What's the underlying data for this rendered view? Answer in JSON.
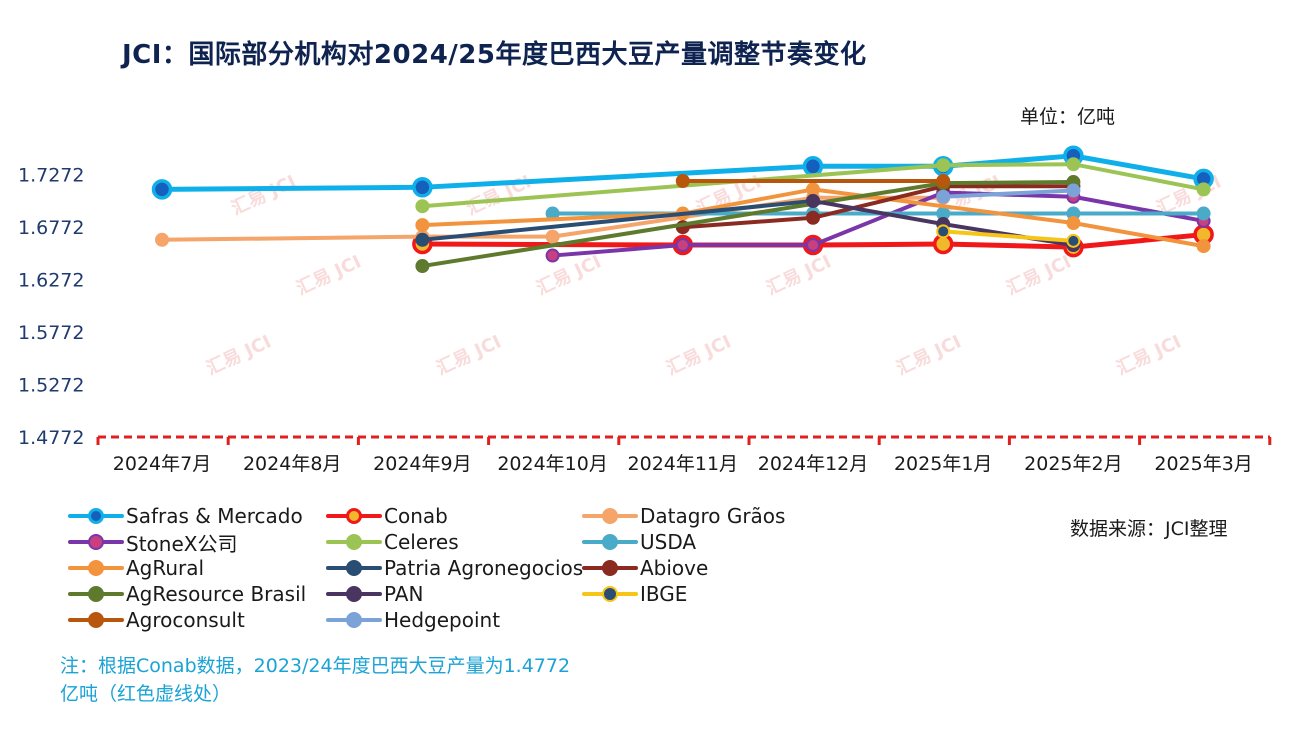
{
  "title": "JCI：国际部分机构对2024/25年度巴西大豆产量调整节奏变化",
  "unit_label": "单位：亿吨",
  "source_label": "数据来源：JCI整理",
  "note": "注：根据Conab数据，2023/24年度巴西大豆产量为1.4772亿吨（红色虚线处）",
  "watermark_text": "汇易 JCI",
  "chart_data": {
    "type": "line",
    "categories": [
      "2024年7月",
      "2024年8月",
      "2024年9月",
      "2024年10月",
      "2024年11月",
      "2024年12月",
      "2025年1月",
      "2025年2月",
      "2025年3月"
    ],
    "y_ticks": [
      "1.7272",
      "1.6772",
      "1.6272",
      "1.5772",
      "1.5272",
      "1.4772"
    ],
    "ylim": [
      1.4772,
      1.7772
    ],
    "reference_line": {
      "value": 1.4772,
      "color": "#e02020",
      "style": "dashed"
    },
    "grid": false,
    "legend_position": "bottom",
    "series": [
      {
        "name": "Safras & Mercado",
        "color": "#0fb0ea",
        "marker_fill": "#1560bd",
        "marker_edge": "#0fb0ea",
        "big": true,
        "values": [
          1.713,
          null,
          1.715,
          null,
          null,
          1.735,
          1.735,
          1.745,
          1.723
        ]
      },
      {
        "name": "Conab",
        "color": "#f01818",
        "marker_fill": "#f0b82a",
        "marker_edge": "#f01818",
        "big": true,
        "values": [
          null,
          null,
          1.661,
          null,
          1.66,
          1.66,
          1.661,
          1.658,
          1.67
        ]
      },
      {
        "name": "Datagro Grãos",
        "color": "#f5a46a",
        "marker_fill": "#f5a46a",
        "marker_edge": "#f5a46a",
        "big": false,
        "values": [
          1.665,
          null,
          1.668,
          1.668,
          null,
          1.705,
          1.705,
          null,
          null
        ]
      },
      {
        "name": "StoneX公司",
        "color": "#7a35a8",
        "marker_fill": "#c94080",
        "marker_edge": "#7a35a8",
        "big": false,
        "values": [
          null,
          null,
          null,
          1.65,
          1.66,
          1.66,
          1.71,
          1.706,
          1.683
        ]
      },
      {
        "name": "Celeres",
        "color": "#9cc454",
        "marker_fill": "#9cc454",
        "marker_edge": "#9cc454",
        "big": false,
        "values": [
          null,
          null,
          1.697,
          null,
          null,
          null,
          1.736,
          1.737,
          1.713
        ]
      },
      {
        "name": "USDA",
        "color": "#4aabc8",
        "marker_fill": "#4aabc8",
        "marker_edge": "#4aabc8",
        "big": false,
        "values": [
          null,
          null,
          null,
          1.69,
          null,
          1.69,
          1.69,
          1.69,
          1.69
        ]
      },
      {
        "name": "AgRural",
        "color": "#f2943e",
        "marker_fill": "#f2943e",
        "marker_edge": "#f2943e",
        "big": false,
        "values": [
          null,
          null,
          1.679,
          null,
          1.69,
          1.713,
          null,
          1.681,
          1.659
        ]
      },
      {
        "name": "Patria Agronegocios",
        "color": "#2a4d73",
        "marker_fill": "#2a4d73",
        "marker_edge": "#2a4d73",
        "big": false,
        "values": [
          null,
          null,
          1.665,
          null,
          null,
          1.702,
          null,
          null,
          null
        ]
      },
      {
        "name": "Abiove",
        "color": "#8a2a20",
        "marker_fill": "#8a2a20",
        "marker_edge": "#8a2a20",
        "big": false,
        "values": [
          null,
          null,
          null,
          null,
          1.677,
          1.686,
          1.716,
          1.716,
          null
        ]
      },
      {
        "name": "AgResource Brasil",
        "color": "#5e7a2c",
        "marker_fill": "#5e7a2c",
        "marker_edge": "#5e7a2c",
        "big": false,
        "values": [
          null,
          null,
          1.64,
          null,
          null,
          null,
          1.719,
          1.72,
          null
        ]
      },
      {
        "name": "PAN",
        "color": "#4a3560",
        "marker_fill": "#4a3560",
        "marker_edge": "#4a3560",
        "big": false,
        "values": [
          null,
          null,
          null,
          null,
          null,
          1.702,
          1.68,
          1.66,
          null
        ]
      },
      {
        "name": "IBGE",
        "color": "#f5c518",
        "marker_fill": "#2a4d73",
        "marker_edge": "#f5c518",
        "big": false,
        "values": [
          null,
          null,
          null,
          null,
          null,
          null,
          1.673,
          1.664,
          null
        ]
      },
      {
        "name": "Agroconsult",
        "color": "#b8560e",
        "marker_fill": "#b8560e",
        "marker_edge": "#b8560e",
        "big": false,
        "values": [
          null,
          null,
          null,
          null,
          1.721,
          null,
          1.721,
          null,
          null
        ]
      },
      {
        "name": "Hedgepoint",
        "color": "#7ba3d8",
        "marker_fill": "#7ba3d8",
        "marker_edge": "#7ba3d8",
        "big": false,
        "values": [
          null,
          null,
          null,
          null,
          null,
          null,
          1.706,
          1.712,
          null
        ]
      }
    ]
  }
}
